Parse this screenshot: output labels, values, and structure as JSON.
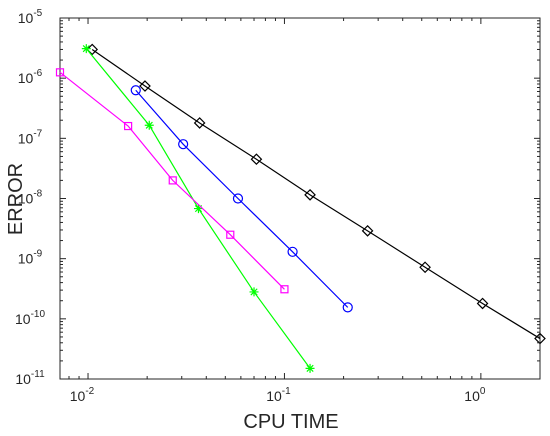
{
  "chart_data": {
    "type": "line",
    "title": "",
    "xlabel": "CPU TIME",
    "ylabel": "ERROR",
    "xscale": "log",
    "yscale": "log",
    "xlim": [
      0.0072,
      2.0
    ],
    "ylim": [
      1e-11,
      1e-05
    ],
    "grid": false,
    "legend": "none",
    "x_ticks": [
      {
        "base": "10",
        "exp": "-2",
        "value": 0.01
      },
      {
        "base": "10",
        "exp": "-1",
        "value": 0.1
      },
      {
        "base": "10",
        "exp": "0",
        "value": 1
      }
    ],
    "y_ticks": [
      {
        "base": "10",
        "exp": "-11",
        "value": 1e-11
      },
      {
        "base": "10",
        "exp": "-10",
        "value": 1e-10
      },
      {
        "base": "10",
        "exp": "-9",
        "value": 1e-09
      },
      {
        "base": "10",
        "exp": "-8",
        "value": 1e-08
      },
      {
        "base": "10",
        "exp": "-7",
        "value": 1e-07
      },
      {
        "base": "10",
        "exp": "-6",
        "value": 1e-06
      },
      {
        "base": "10",
        "exp": "-5",
        "value": 1e-05
      }
    ],
    "series": [
      {
        "color": "#000000",
        "marker": "diamond",
        "x": [
          0.0105,
          0.0195,
          0.037,
          0.072,
          0.135,
          0.265,
          0.52,
          1.02,
          2.0
        ],
        "y": [
          3e-06,
          7.4e-07,
          1.8e-07,
          4.5e-08,
          1.15e-08,
          2.9e-09,
          7.2e-10,
          1.8e-10,
          4.7e-11
        ]
      },
      {
        "color": "#0000ff",
        "marker": "circle",
        "x": [
          0.0175,
          0.0305,
          0.058,
          0.11,
          0.21
        ],
        "y": [
          6.3e-07,
          8e-08,
          1e-08,
          1.3e-09,
          1.55e-10
        ]
      },
      {
        "color": "#00ff00",
        "marker": "asterisk",
        "x": [
          0.0098,
          0.0205,
          0.0365,
          0.07,
          0.135
        ],
        "y": [
          3.1e-06,
          1.65e-07,
          6.8e-09,
          2.8e-10,
          1.5e-11
        ]
      },
      {
        "color": "#ff00ff",
        "marker": "square",
        "x": [
          0.0072,
          0.016,
          0.027,
          0.053,
          0.1
        ],
        "y": [
          1.25e-06,
          1.6e-07,
          2e-08,
          2.5e-09,
          3.1e-10
        ]
      }
    ]
  }
}
